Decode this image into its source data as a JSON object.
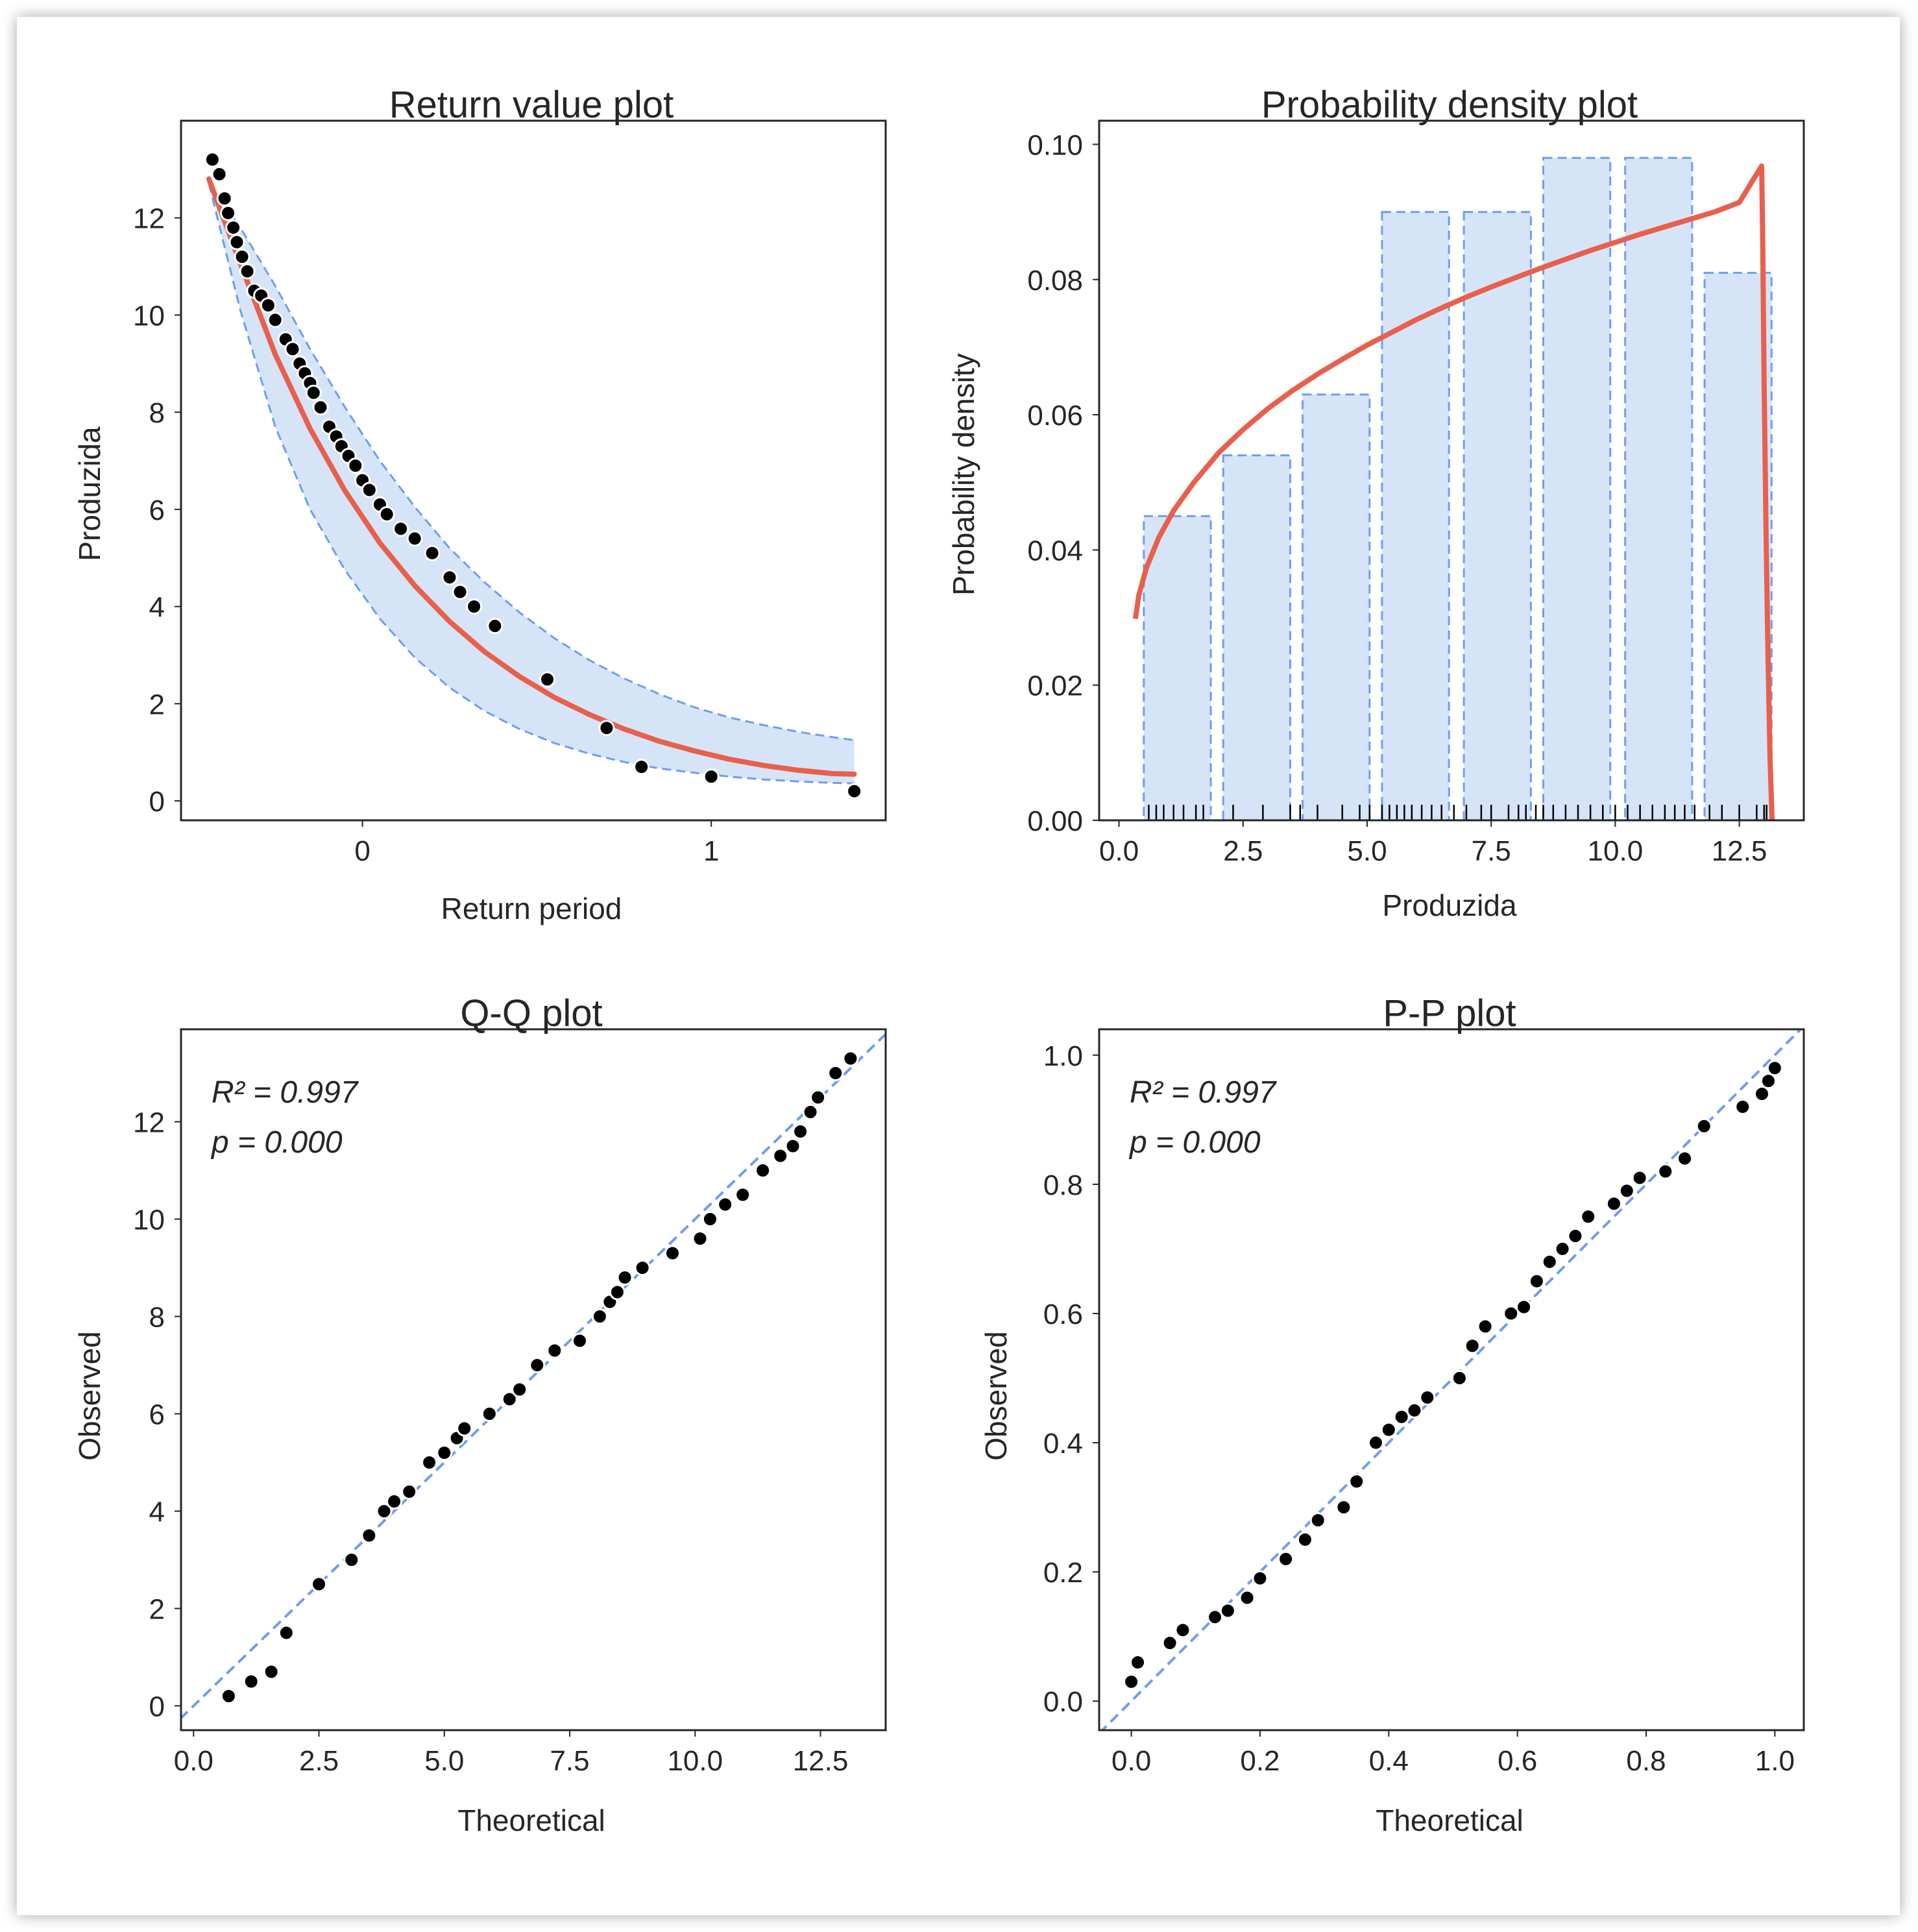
{
  "chart_data": [
    {
      "id": "return",
      "type": "scatter",
      "title": "Return value plot",
      "xlabel": "Return period",
      "ylabel": "Produzida",
      "xlim": [
        -0.52,
        1.5
      ],
      "ylim": [
        -0.4,
        14
      ],
      "xticks": [
        0,
        1
      ],
      "xtick_labels": [
        "0",
        "1"
      ],
      "yticks": [
        0,
        2,
        4,
        6,
        8,
        10,
        12
      ],
      "ytick_labels": [
        "0",
        "2",
        "4",
        "6",
        "8",
        "10",
        "12"
      ],
      "colors": {
        "fit": "#e8604c",
        "band_fill": "#d6e4f8",
        "band_edge": "#6f9df0",
        "points": "#000000"
      },
      "fit_curve": {
        "x": [
          -0.44,
          -0.35,
          -0.25,
          -0.15,
          -0.05,
          0.05,
          0.15,
          0.25,
          0.35,
          0.45,
          0.55,
          0.65,
          0.75,
          0.85,
          0.95,
          1.05,
          1.15,
          1.25,
          1.35,
          1.41
        ],
        "y": [
          12.8,
          11.06,
          9.19,
          7.66,
          6.38,
          5.31,
          4.43,
          3.69,
          3.07,
          2.56,
          2.13,
          1.78,
          1.48,
          1.23,
          1.03,
          0.86,
          0.73,
          0.63,
          0.56,
          0.55
        ]
      },
      "upper_band": {
        "x": [
          -0.44,
          -0.35,
          -0.25,
          -0.15,
          -0.05,
          0.05,
          0.15,
          0.25,
          0.35,
          0.45,
          0.55,
          0.65,
          0.75,
          0.85,
          0.95,
          1.05,
          1.15,
          1.25,
          1.35,
          1.41
        ],
        "y": [
          12.7,
          11.8,
          10.6,
          9.3,
          8.1,
          7.0,
          6.05,
          5.2,
          4.5,
          3.88,
          3.35,
          2.9,
          2.52,
          2.2,
          1.93,
          1.72,
          1.56,
          1.42,
          1.31,
          1.25
        ]
      },
      "lower_band": {
        "x": [
          -0.44,
          -0.35,
          -0.25,
          -0.15,
          -0.05,
          0.05,
          0.15,
          0.25,
          0.35,
          0.45,
          0.55,
          0.65,
          0.75,
          0.85,
          0.95,
          1.05,
          1.15,
          1.25,
          1.35,
          1.41
        ],
        "y": [
          12.7,
          10.1,
          7.7,
          6.0,
          4.75,
          3.75,
          2.95,
          2.33,
          1.85,
          1.48,
          1.19,
          0.97,
          0.8,
          0.67,
          0.58,
          0.5,
          0.44,
          0.4,
          0.37,
          0.36
        ]
      },
      "points": {
        "x": [
          -0.43,
          -0.41,
          -0.395,
          -0.385,
          -0.37,
          -0.36,
          -0.345,
          -0.33,
          -0.31,
          -0.29,
          -0.27,
          -0.25,
          -0.22,
          -0.2,
          -0.18,
          -0.165,
          -0.15,
          -0.14,
          -0.12,
          -0.095,
          -0.075,
          -0.06,
          -0.04,
          -0.02,
          0.0,
          0.02,
          0.05,
          0.07,
          0.11,
          0.15,
          0.2,
          0.25,
          0.28,
          0.32,
          0.38,
          0.53,
          0.7,
          0.8,
          1.0,
          1.41
        ],
        "y": [
          13.2,
          12.9,
          12.4,
          12.1,
          11.8,
          11.5,
          11.2,
          10.9,
          10.5,
          10.4,
          10.2,
          9.9,
          9.5,
          9.3,
          9.0,
          8.8,
          8.6,
          8.4,
          8.1,
          7.7,
          7.5,
          7.3,
          7.1,
          6.9,
          6.6,
          6.4,
          6.1,
          5.9,
          5.6,
          5.4,
          5.1,
          4.6,
          4.3,
          4.0,
          3.6,
          2.5,
          1.5,
          0.7,
          0.5,
          0.2
        ]
      }
    },
    {
      "id": "density",
      "type": "bar",
      "title": "Probability density plot",
      "xlabel": "Produzida",
      "ylabel": "Probability density",
      "xlim": [
        -0.4,
        13.8
      ],
      "ylim": [
        0,
        0.1035
      ],
      "xticks": [
        0,
        2.5,
        5,
        7.5,
        10,
        12.5
      ],
      "xtick_labels": [
        "0.0",
        "2.5",
        "5.0",
        "7.5",
        "10.0",
        "12.5"
      ],
      "yticks": [
        0,
        0.02,
        0.04,
        0.06,
        0.08,
        0.1
      ],
      "ytick_labels": [
        "0.00",
        "0.02",
        "0.04",
        "0.06",
        "0.08",
        "0.10"
      ],
      "colors": {
        "fit": "#e8604c",
        "bar_fill": "#d6e4f8",
        "bar_edge": "#6f9df0"
      },
      "bars": [
        {
          "x0": 0.5,
          "x1": 1.85,
          "value": 0.045
        },
        {
          "x0": 2.1,
          "x1": 3.45,
          "value": 0.054
        },
        {
          "x0": 3.7,
          "x1": 5.05,
          "value": 0.063
        },
        {
          "x0": 5.3,
          "x1": 6.65,
          "value": 0.09
        },
        {
          "x0": 6.95,
          "x1": 8.3,
          "value": 0.09
        },
        {
          "x0": 8.55,
          "x1": 9.9,
          "value": 0.098
        },
        {
          "x0": 10.2,
          "x1": 11.55,
          "value": 0.098
        },
        {
          "x0": 11.8,
          "x1": 13.15,
          "value": 0.081
        }
      ],
      "rug": [
        0.6,
        0.75,
        0.9,
        1.1,
        1.3,
        1.55,
        1.7,
        2.3,
        2.9,
        3.45,
        3.65,
        4.0,
        4.5,
        4.85,
        5.05,
        5.3,
        5.45,
        5.6,
        5.75,
        5.9,
        6.1,
        6.3,
        6.5,
        6.75,
        7.0,
        7.3,
        7.5,
        7.85,
        8.05,
        8.2,
        8.4,
        8.55,
        8.75,
        9.0,
        9.25,
        9.5,
        9.75,
        10.0,
        10.25,
        10.5,
        10.75,
        11.0,
        11.2,
        11.4,
        11.6,
        11.9,
        12.15,
        12.5,
        12.85,
        13.0,
        13.05
      ],
      "fit_curve": {
        "x": [
          0.33,
          0.4,
          0.55,
          0.8,
          1.1,
          1.5,
          2,
          2.5,
          3,
          3.5,
          4,
          4.5,
          5,
          5.5,
          6,
          6.5,
          7,
          7.5,
          8,
          8.5,
          9,
          9.5,
          10,
          10.5,
          11,
          11.5,
          12,
          12.5,
          12.95,
          12.97,
          13.0,
          13.04,
          13.08,
          13.12,
          13.16
        ],
        "y": [
          0.0298,
          0.0333,
          0.0373,
          0.0418,
          0.0458,
          0.0499,
          0.0543,
          0.0578,
          0.0609,
          0.0636,
          0.066,
          0.0682,
          0.0703,
          0.0722,
          0.0741,
          0.0758,
          0.0774,
          0.0789,
          0.0803,
          0.0817,
          0.083,
          0.0843,
          0.0855,
          0.0867,
          0.0878,
          0.0889,
          0.09,
          0.0914,
          0.0968,
          0.0875,
          0.065,
          0.042,
          0.024,
          0.009,
          0.0
        ]
      }
    },
    {
      "id": "qq",
      "type": "scatter",
      "title": "Q-Q plot",
      "xlabel": "Theoretical",
      "ylabel": "Observed",
      "xlim": [
        -0.25,
        13.8
      ],
      "ylim": [
        -0.5,
        13.9
      ],
      "xticks": [
        0,
        2.5,
        5,
        7.5,
        10,
        12.5
      ],
      "xtick_labels": [
        "0.0",
        "2.5",
        "5.0",
        "7.5",
        "10.0",
        "12.5"
      ],
      "yticks": [
        0,
        2,
        4,
        6,
        8,
        10,
        12
      ],
      "ytick_labels": [
        "0",
        "2",
        "4",
        "6",
        "8",
        "10",
        "12"
      ],
      "annotation": {
        "r2": "R² = 0.997",
        "p": "p = 0.000"
      },
      "colors": {
        "ref_line": "#6f9df0",
        "points": "#000000"
      },
      "points": {
        "x": [
          0.7,
          1.15,
          1.55,
          1.85,
          2.5,
          3.15,
          3.5,
          3.8,
          4.0,
          4.3,
          4.7,
          5.0,
          5.25,
          5.4,
          5.9,
          6.3,
          6.5,
          6.85,
          7.2,
          7.7,
          8.1,
          8.3,
          8.45,
          8.6,
          8.95,
          9.55,
          10.1,
          10.3,
          10.6,
          10.95,
          11.35,
          11.7,
          11.95,
          12.1,
          12.3,
          12.45,
          12.8,
          13.1
        ],
        "y": [
          0.2,
          0.5,
          0.7,
          1.5,
          2.5,
          3.0,
          3.5,
          4.0,
          4.2,
          4.4,
          5.0,
          5.2,
          5.5,
          5.7,
          6.0,
          6.3,
          6.5,
          7.0,
          7.3,
          7.5,
          8.0,
          8.3,
          8.5,
          8.8,
          9.0,
          9.3,
          9.6,
          10.0,
          10.3,
          10.5,
          11.0,
          11.3,
          11.5,
          11.8,
          12.2,
          12.5,
          13.0,
          13.3
        ]
      }
    },
    {
      "id": "pp",
      "type": "scatter",
      "title": "P-P plot",
      "xlabel": "Theoretical",
      "ylabel": "Observed",
      "xlim": [
        -0.05,
        1.045
      ],
      "ylim": [
        -0.045,
        1.04
      ],
      "xticks": [
        0,
        0.2,
        0.4,
        0.6,
        0.8,
        1.0
      ],
      "xtick_labels": [
        "0.0",
        "0.2",
        "0.4",
        "0.6",
        "0.8",
        "1.0"
      ],
      "yticks": [
        0,
        0.2,
        0.4,
        0.6,
        0.8,
        1.0
      ],
      "ytick_labels": [
        "0.0",
        "0.2",
        "0.4",
        "0.6",
        "0.8",
        "1.0"
      ],
      "annotation": {
        "r2": "R² = 0.997",
        "p": "p = 0.000"
      },
      "colors": {
        "ref_line": "#6f9df0",
        "points": "#000000"
      },
      "points": {
        "x": [
          0.0,
          0.01,
          0.06,
          0.08,
          0.13,
          0.15,
          0.18,
          0.2,
          0.24,
          0.27,
          0.29,
          0.33,
          0.35,
          0.38,
          0.4,
          0.42,
          0.44,
          0.46,
          0.51,
          0.53,
          0.55,
          0.59,
          0.61,
          0.63,
          0.65,
          0.67,
          0.69,
          0.71,
          0.75,
          0.77,
          0.79,
          0.83,
          0.86,
          0.89,
          0.95,
          0.98,
          0.99,
          1.0
        ],
        "y": [
          0.03,
          0.06,
          0.09,
          0.11,
          0.13,
          0.14,
          0.16,
          0.19,
          0.22,
          0.25,
          0.28,
          0.3,
          0.34,
          0.4,
          0.42,
          0.44,
          0.45,
          0.47,
          0.5,
          0.55,
          0.58,
          0.6,
          0.61,
          0.65,
          0.68,
          0.7,
          0.72,
          0.75,
          0.77,
          0.79,
          0.81,
          0.82,
          0.84,
          0.89,
          0.92,
          0.94,
          0.96,
          0.98
        ]
      }
    }
  ]
}
